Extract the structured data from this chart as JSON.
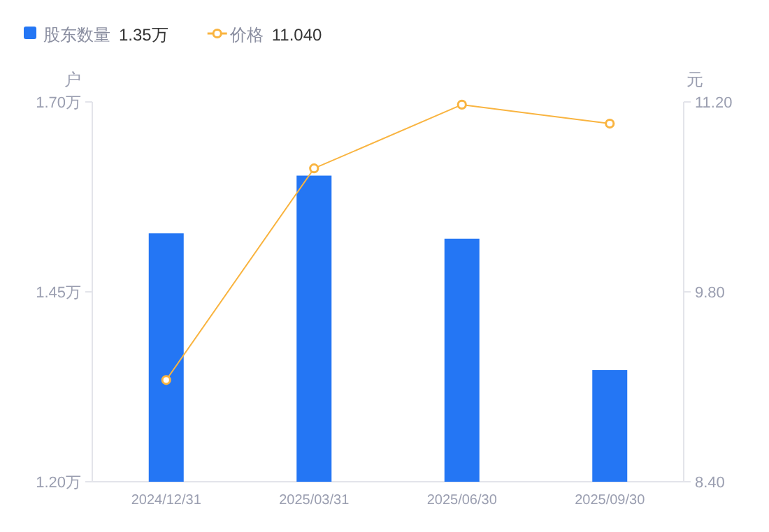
{
  "chart_data": {
    "type": "bar",
    "categories": [
      "2024/12/31",
      "2025/03/31",
      "2025/06/30",
      "2025/09/30"
    ],
    "ylabel": "户",
    "y2label": "元",
    "series": [
      {
        "name": "股东数量",
        "color": "#2476f4",
        "values": [
          1.527,
          1.603,
          1.52,
          1.347
        ]
      },
      {
        "name": "价格",
        "type": "line",
        "axis": "y2",
        "color": "#f9b440",
        "marker": "circle",
        "values": [
          9.15,
          10.71,
          11.18,
          11.04
        ]
      }
    ],
    "annotations": [
      "1.35万",
      "11.040"
    ],
    "ylim": [
      1.2,
      1.7
    ],
    "yticks": [
      {
        "value": 1.2,
        "label": "1.20万"
      },
      {
        "value": 1.45,
        "label": "1.45万"
      },
      {
        "value": 1.7,
        "label": "1.70万"
      }
    ],
    "y2lim": [
      8.4,
      11.2
    ],
    "y2ticks": [
      {
        "value": 8.4,
        "label": "8.40"
      },
      {
        "value": 9.8,
        "label": "9.80"
      },
      {
        "value": 11.2,
        "label": "11.20"
      }
    ],
    "legend": "top left"
  }
}
